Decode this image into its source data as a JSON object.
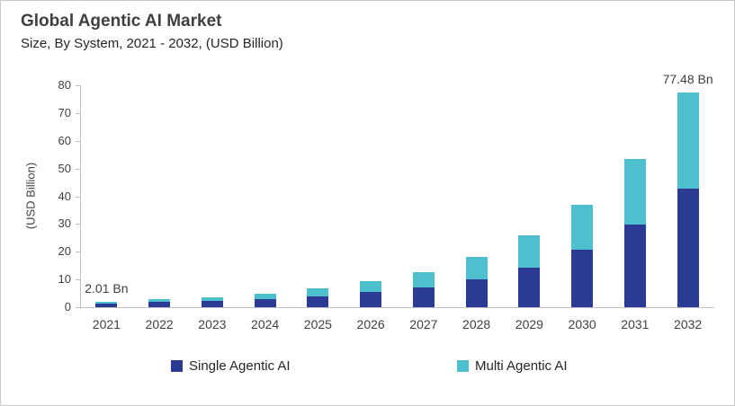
{
  "chart_data": {
    "type": "bar",
    "stacked": true,
    "title": "Global Agentic AI Market",
    "subtitle": "Size, By System, 2021 - 2032, (USD Billion)",
    "ylabel": "(USD Billion)",
    "ylim": [
      0,
      80
    ],
    "ytick_step": 10,
    "grid": false,
    "legend_position": "bottom",
    "categories": [
      "2021",
      "2022",
      "2023",
      "2024",
      "2025",
      "2026",
      "2027",
      "2028",
      "2029",
      "2030",
      "2031",
      "2032"
    ],
    "series": [
      {
        "name": "Single Agentic AI",
        "color": "#2B3A92",
        "values": [
          1.3,
          1.8,
          2.2,
          3.0,
          4.0,
          5.6,
          7.2,
          10.0,
          14.3,
          20.8,
          29.8,
          42.6
        ]
      },
      {
        "name": "Multi Agentic AI",
        "color": "#4EC0CD",
        "values": [
          0.71,
          1.2,
          1.4,
          1.9,
          2.8,
          3.8,
          5.5,
          8.0,
          11.6,
          16.0,
          23.7,
          34.88
        ]
      }
    ],
    "annotations": [
      {
        "category_index": 0,
        "text": "2.01 Bn"
      },
      {
        "category_index": 11,
        "text": "77.48 Bn"
      }
    ]
  },
  "colors": {
    "axis": "#BFBFBF",
    "tick_text": "#404040",
    "title_text": "#404040",
    "frame_border": "#C9C9C9"
  }
}
